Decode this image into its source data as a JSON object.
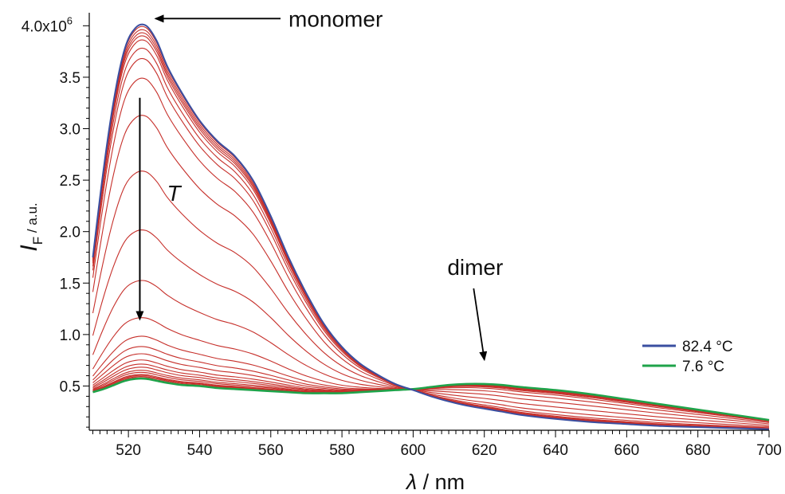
{
  "chart_data": {
    "type": "line",
    "title": "",
    "xlabel": {
      "symbol": "λ",
      "unit": "nm"
    },
    "ylabel": {
      "symbol": "I",
      "subscript": "F",
      "unit": "a.u."
    },
    "xlim": [
      509,
      700
    ],
    "ylim": [
      0.07,
      4.08
    ],
    "y_multiplier": "1e6",
    "x_ticks": [
      "520",
      "540",
      "560",
      "580",
      "600",
      "620",
      "640",
      "660",
      "680",
      "700"
    ],
    "x_tick_values": [
      520,
      540,
      560,
      580,
      600,
      620,
      640,
      660,
      680,
      700
    ],
    "y_ticks": [
      "0.5",
      "1.0",
      "1.5",
      "2.0",
      "2.5",
      "3.0",
      "3.5",
      "4.0x10"
    ],
    "y_tick_values": [
      0.5,
      1.0,
      1.5,
      2.0,
      2.5,
      3.0,
      3.5,
      4.0
    ],
    "y_top_exponent": "6",
    "grid": false,
    "legend_position": "bottom-right",
    "x": [
      510,
      513,
      516,
      519,
      522,
      525,
      528,
      531,
      535,
      540,
      545,
      550,
      555,
      560,
      565,
      570,
      575,
      580,
      585,
      590,
      595,
      600,
      605,
      610,
      615,
      620,
      625,
      630,
      640,
      650,
      660,
      670,
      680,
      690,
      700
    ],
    "series": [
      {
        "name": "82.4 °C",
        "color": "#3a4fa0",
        "values": [
          1.75,
          2.6,
          3.3,
          3.78,
          3.98,
          4.0,
          3.85,
          3.6,
          3.35,
          3.08,
          2.88,
          2.73,
          2.5,
          2.15,
          1.75,
          1.4,
          1.1,
          0.88,
          0.72,
          0.61,
          0.52,
          0.46,
          0.4,
          0.35,
          0.31,
          0.28,
          0.25,
          0.22,
          0.18,
          0.15,
          0.13,
          0.11,
          0.1,
          0.09,
          0.08
        ]
      },
      {
        "name": "7.6 °C",
        "color": "#1fa34a",
        "values": [
          0.44,
          0.47,
          0.51,
          0.55,
          0.57,
          0.57,
          0.55,
          0.53,
          0.51,
          0.5,
          0.48,
          0.47,
          0.46,
          0.45,
          0.44,
          0.43,
          0.43,
          0.43,
          0.44,
          0.45,
          0.46,
          0.47,
          0.49,
          0.51,
          0.52,
          0.52,
          0.51,
          0.49,
          0.46,
          0.42,
          0.37,
          0.32,
          0.27,
          0.22,
          0.17
        ]
      }
    ],
    "intermediate_series": {
      "color": "#c62f2a",
      "count": 26,
      "peak_values": [
        3.98,
        3.95,
        3.92,
        3.89,
        3.85,
        3.77,
        3.67,
        3.48,
        3.12,
        2.58,
        2.01,
        1.52,
        1.16,
        0.98,
        0.88,
        0.81,
        0.75,
        0.71,
        0.68,
        0.65,
        0.63,
        0.61,
        0.6,
        0.59,
        0.58,
        0.575
      ]
    },
    "annotations": [
      {
        "text": "monomer",
        "arrow_to": [
          525,
          4.0
        ]
      },
      {
        "text": "T",
        "arrow": "from 3.3 down to 1.15 at 525 nm"
      },
      {
        "text": "dimer",
        "arrow_to": [
          620,
          0.54
        ]
      }
    ]
  }
}
